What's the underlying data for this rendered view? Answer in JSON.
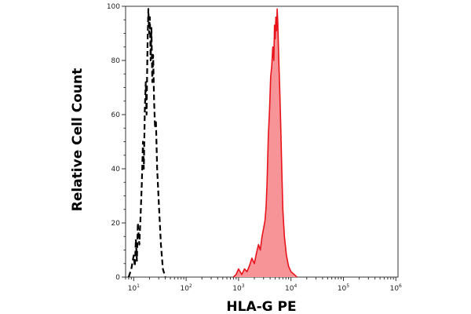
{
  "chart_data": {
    "type": "area",
    "title": "",
    "xlabel": "HLA-G PE",
    "ylabel": "Relative Cell Count",
    "x_scale": "log",
    "xlim": [
      7,
      1100000
    ],
    "ylim": [
      0,
      100
    ],
    "x_ticks": [
      {
        "base": "10",
        "exp": "1",
        "value": 10
      },
      {
        "base": "10",
        "exp": "2",
        "value": 100
      },
      {
        "base": "10",
        "exp": "3",
        "value": 1000
      },
      {
        "base": "10",
        "exp": "4",
        "value": 10000
      },
      {
        "base": "10",
        "exp": "5",
        "value": 100000
      },
      {
        "base": "10",
        "exp": "6",
        "value": 1000000
      }
    ],
    "y_ticks": [
      0,
      20,
      40,
      60,
      80,
      100
    ],
    "grid": false,
    "series": [
      {
        "style": "dashed",
        "color": "#000000",
        "fill": "none",
        "points": [
          [
            8,
            0
          ],
          [
            9,
            3
          ],
          [
            10,
            8
          ],
          [
            10.5,
            4
          ],
          [
            11,
            14
          ],
          [
            11.5,
            6
          ],
          [
            12,
            20
          ],
          [
            12.8,
            12
          ],
          [
            13.5,
            22
          ],
          [
            14.3,
            35
          ],
          [
            15,
            50
          ],
          [
            15.6,
            40
          ],
          [
            16.3,
            62
          ],
          [
            17,
            72
          ],
          [
            17.6,
            60
          ],
          [
            18.3,
            85
          ],
          [
            19,
            99
          ],
          [
            19.6,
            90
          ],
          [
            20.3,
            96
          ],
          [
            21,
            80
          ],
          [
            21.8,
            92
          ],
          [
            22.6,
            72
          ],
          [
            23.5,
            82
          ],
          [
            24.5,
            65
          ],
          [
            25.5,
            55
          ],
          [
            26.5,
            58
          ],
          [
            28,
            40
          ],
          [
            30,
            28
          ],
          [
            33,
            12
          ],
          [
            36,
            3
          ],
          [
            40,
            0
          ]
        ]
      },
      {
        "style": "solid",
        "color": "#e8141c",
        "fill": "#f69497",
        "points": [
          [
            800,
            0
          ],
          [
            900,
            1
          ],
          [
            1000,
            3
          ],
          [
            1150,
            1
          ],
          [
            1300,
            3
          ],
          [
            1450,
            2
          ],
          [
            1600,
            4
          ],
          [
            1800,
            7
          ],
          [
            2000,
            5
          ],
          [
            2200,
            9
          ],
          [
            2400,
            12
          ],
          [
            2600,
            10
          ],
          [
            2800,
            15
          ],
          [
            3000,
            18
          ],
          [
            3200,
            21
          ],
          [
            3350,
            26
          ],
          [
            3500,
            35
          ],
          [
            3700,
            52
          ],
          [
            3900,
            62
          ],
          [
            4100,
            74
          ],
          [
            4300,
            78
          ],
          [
            4500,
            85
          ],
          [
            4700,
            80
          ],
          [
            4850,
            93
          ],
          [
            5000,
            88
          ],
          [
            5150,
            96
          ],
          [
            5300,
            91
          ],
          [
            5450,
            99
          ],
          [
            5600,
            94
          ],
          [
            5750,
            86
          ],
          [
            5900,
            78
          ],
          [
            6100,
            70
          ],
          [
            6400,
            55
          ],
          [
            6700,
            38
          ],
          [
            7000,
            25
          ],
          [
            7500,
            15
          ],
          [
            8200,
            8
          ],
          [
            9000,
            4
          ],
          [
            10000,
            2
          ],
          [
            11500,
            1
          ],
          [
            13000,
            0
          ]
        ]
      }
    ]
  }
}
